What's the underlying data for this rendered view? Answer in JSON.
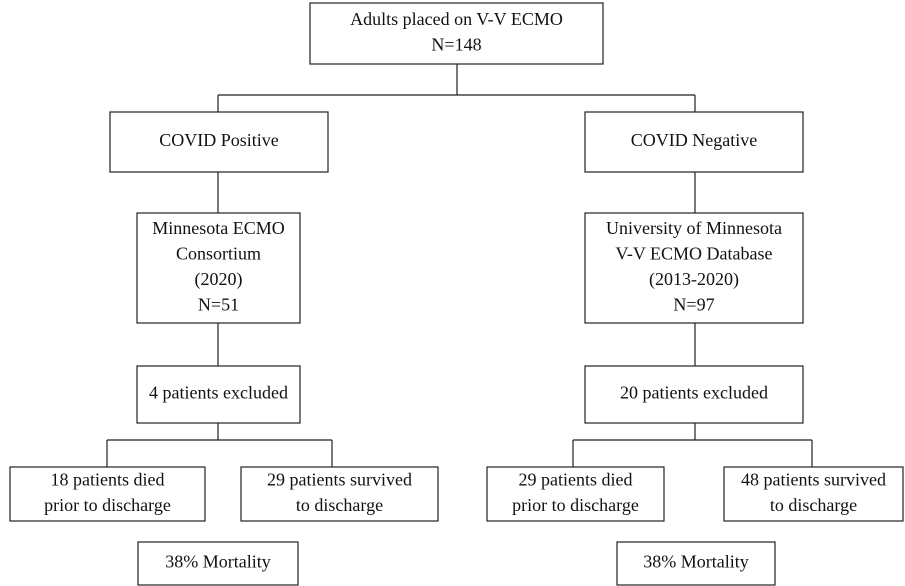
{
  "nodes": [
    {
      "lines": [
        "Adults placed on V-V ECMO",
        "N=148"
      ]
    },
    {
      "lines": [
        "COVID Positive"
      ]
    },
    {
      "lines": [
        "COVID Negative"
      ]
    },
    {
      "lines": [
        "Minnesota ECMO",
        "Consortium",
        "(2020)",
        "N=51"
      ]
    },
    {
      "lines": [
        "University of Minnesota",
        "V-V ECMO Database",
        "(2013-2020)",
        "N=97"
      ]
    },
    {
      "lines": [
        "4 patients excluded"
      ]
    },
    {
      "lines": [
        "20 patients excluded"
      ]
    },
    {
      "lines": [
        "18 patients died",
        "prior to discharge"
      ]
    },
    {
      "lines": [
        "29 patients survived",
        "to discharge"
      ]
    },
    {
      "lines": [
        "29 patients died",
        "prior to discharge"
      ]
    },
    {
      "lines": [
        "48 patients survived",
        "to discharge"
      ]
    },
    {
      "lines": [
        "38% Mortality"
      ]
    },
    {
      "lines": [
        "38% Mortality"
      ]
    }
  ]
}
